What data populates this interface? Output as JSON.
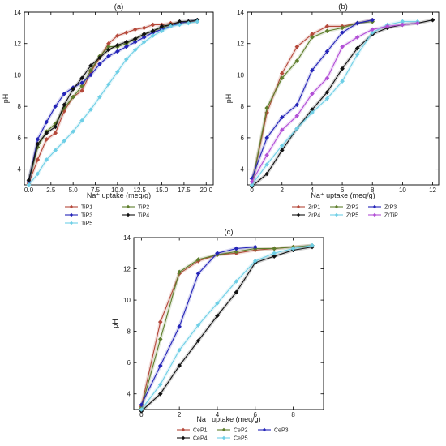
{
  "chart_data": [
    {
      "type": "line",
      "title": "(a)",
      "xlabel": "Na⁺ uptake (meq/g)",
      "ylabel": "pH",
      "xlim": [
        -0.5,
        20.8
      ],
      "ylim": [
        3,
        14
      ],
      "xticks": [
        0.0,
        2.5,
        5.0,
        7.5,
        10.0,
        12.5,
        15.0,
        17.5,
        20.0
      ],
      "xtick_labels": [
        "0.0",
        "2.5",
        "5.0",
        "7.5",
        "10.0",
        "12.5",
        "15.0",
        "17.5",
        "20.0"
      ],
      "yticks": [
        4,
        6,
        8,
        10,
        12,
        14
      ],
      "ytick_labels": [
        "4",
        "6",
        "8",
        "10",
        "12",
        "14"
      ],
      "grid": false,
      "legend_position": "bottom",
      "legend_columns": 2,
      "series": [
        {
          "name": "TiP1",
          "color": "#b5483a",
          "x": [
            0,
            1,
            2,
            3,
            4,
            5,
            6,
            7,
            8,
            9,
            10,
            11,
            12,
            13,
            14,
            15,
            16,
            17,
            18,
            19
          ],
          "y": [
            3.1,
            4.6,
            5.9,
            6.3,
            7.7,
            8.6,
            9.0,
            10.2,
            11.1,
            12.0,
            12.5,
            12.7,
            12.9,
            13.0,
            13.2,
            13.2,
            13.3,
            13.3,
            13.4,
            13.4
          ]
        },
        {
          "name": "TiP2",
          "color": "#5e7e2c",
          "x": [
            0,
            1,
            2,
            3,
            4,
            5,
            6,
            7,
            8,
            9,
            10,
            11,
            12,
            13,
            14,
            15,
            16,
            17,
            18,
            19
          ],
          "y": [
            3.2,
            5.4,
            6.4,
            6.9,
            7.9,
            8.6,
            9.3,
            10.3,
            11.2,
            11.8,
            11.8,
            12.0,
            12.3,
            12.6,
            12.8,
            13.0,
            13.2,
            13.3,
            13.4,
            13.5
          ]
        },
        {
          "name": "TiP3",
          "color": "#2424b8",
          "x": [
            0,
            1,
            2,
            3,
            4,
            5,
            6,
            7,
            8,
            9,
            10,
            11,
            12,
            13,
            14,
            15,
            16,
            17,
            18,
            19
          ],
          "y": [
            3.2,
            5.9,
            7.0,
            8.0,
            8.8,
            9.2,
            9.5,
            10.0,
            10.7,
            11.2,
            11.5,
            11.8,
            12.1,
            12.4,
            12.7,
            12.9,
            13.1,
            13.3,
            13.4,
            13.5
          ]
        },
        {
          "name": "TiP4",
          "color": "#111111",
          "x": [
            0,
            1,
            2,
            3,
            4,
            5,
            6,
            7,
            8,
            9,
            10,
            11,
            12,
            13,
            14,
            15,
            16,
            17,
            18,
            19
          ],
          "y": [
            3.3,
            5.6,
            6.3,
            6.7,
            8.1,
            9.1,
            9.8,
            10.6,
            11.1,
            11.6,
            11.9,
            12.1,
            12.3,
            12.6,
            12.8,
            13.1,
            13.2,
            13.4,
            13.4,
            13.5
          ]
        },
        {
          "name": "TiP5",
          "color": "#6ecfe6",
          "x": [
            0,
            1,
            2,
            3,
            4,
            5,
            6,
            7,
            8,
            9,
            10,
            11,
            12,
            13,
            14,
            15,
            16,
            17,
            18,
            19
          ],
          "y": [
            3.0,
            3.7,
            4.6,
            5.2,
            5.8,
            6.4,
            7.1,
            7.8,
            8.6,
            9.4,
            10.2,
            11.0,
            11.6,
            12.1,
            12.5,
            12.8,
            13.1,
            13.2,
            13.3,
            13.4
          ]
        }
      ]
    },
    {
      "type": "line",
      "title": "(b)",
      "xlabel": "Na⁺ uptake (meq/g)",
      "ylabel": "pH",
      "xlim": [
        -0.3,
        12.4
      ],
      "ylim": [
        3,
        14
      ],
      "xticks": [
        0,
        2,
        4,
        6,
        8,
        10,
        12
      ],
      "xtick_labels": [
        "0",
        "2",
        "4",
        "6",
        "8",
        "10",
        "12"
      ],
      "yticks": [
        4,
        6,
        8,
        10,
        12,
        14
      ],
      "ytick_labels": [
        "4",
        "6",
        "8",
        "10",
        "12",
        "14"
      ],
      "grid": false,
      "legend_position": "bottom",
      "legend_columns": 3,
      "series": [
        {
          "name": "ZrP1",
          "color": "#b5483a",
          "x": [
            0,
            1,
            2,
            3,
            4,
            5,
            6,
            7,
            8
          ],
          "y": [
            3.0,
            7.6,
            10.1,
            11.8,
            12.6,
            13.1,
            13.1,
            13.3,
            13.5
          ]
        },
        {
          "name": "ZrP2",
          "color": "#5e7e2c",
          "x": [
            0,
            1,
            2,
            3,
            4,
            5,
            6,
            7,
            8
          ],
          "y": [
            3.0,
            7.9,
            9.8,
            10.9,
            12.4,
            12.8,
            13.0,
            13.3,
            13.4
          ]
        },
        {
          "name": "ZrP3",
          "color": "#2424b8",
          "x": [
            0,
            1,
            2,
            3,
            4,
            5,
            6,
            7,
            8
          ],
          "y": [
            3.4,
            6.0,
            7.3,
            8.1,
            10.3,
            11.5,
            12.7,
            13.3,
            13.5
          ]
        },
        {
          "name": "ZrP4",
          "color": "#111111",
          "x": [
            0,
            1,
            2,
            3,
            4,
            5,
            6,
            7,
            8,
            9,
            10,
            11,
            12
          ],
          "y": [
            2.9,
            3.7,
            5.2,
            6.6,
            7.8,
            8.9,
            10.4,
            11.7,
            12.6,
            13.0,
            13.2,
            13.3,
            13.5
          ]
        },
        {
          "name": "ZrP5",
          "color": "#6ecfe6",
          "x": [
            0,
            1,
            2,
            3,
            4,
            5,
            6,
            7,
            8,
            9,
            10,
            11
          ],
          "y": [
            3.0,
            4.3,
            5.5,
            6.6,
            7.6,
            8.5,
            9.6,
            11.3,
            12.7,
            13.2,
            13.4,
            13.4
          ]
        },
        {
          "name": "ZrTiP",
          "color": "#b24fd6",
          "x": [
            0,
            1,
            2,
            3,
            4,
            5,
            6,
            7,
            8,
            9,
            10,
            11
          ],
          "y": [
            3.2,
            4.9,
            6.5,
            7.4,
            8.8,
            9.8,
            11.8,
            12.4,
            12.9,
            13.1,
            13.2,
            13.3
          ]
        }
      ]
    },
    {
      "type": "line",
      "title": "(c)",
      "xlabel": "Na⁺ uptake (meq/g)",
      "ylabel": "pH",
      "xlim": [
        -0.4,
        9.6
      ],
      "ylim": [
        3,
        14
      ],
      "xticks": [
        0,
        2,
        4,
        6,
        8
      ],
      "xtick_labels": [
        "0",
        "2",
        "4",
        "6",
        "8"
      ],
      "yticks": [
        4,
        6,
        8,
        10,
        12,
        14
      ],
      "ytick_labels": [
        "4",
        "6",
        "8",
        "10",
        "12",
        "14"
      ],
      "grid": false,
      "legend_position": "bottom",
      "legend_columns": 3,
      "series": [
        {
          "name": "CeP1",
          "color": "#b5483a",
          "x": [
            0,
            1,
            2,
            3,
            4,
            5,
            6,
            7,
            8,
            9
          ],
          "y": [
            3.2,
            8.6,
            11.7,
            12.5,
            12.9,
            13.0,
            13.2,
            13.3,
            13.4,
            13.5
          ]
        },
        {
          "name": "CeP2",
          "color": "#5e7e2c",
          "x": [
            0,
            1,
            2,
            3,
            4,
            5,
            6,
            7,
            8,
            9
          ],
          "y": [
            3.1,
            7.5,
            11.8,
            12.6,
            12.9,
            13.1,
            13.3,
            13.3,
            13.4,
            13.5
          ]
        },
        {
          "name": "CeP3",
          "color": "#2424b8",
          "x": [
            0,
            1,
            2,
            3,
            4,
            5,
            6
          ],
          "y": [
            3.3,
            5.8,
            8.3,
            11.7,
            13.0,
            13.3,
            13.4
          ]
        },
        {
          "name": "CeP4",
          "color": "#111111",
          "x": [
            0,
            1,
            2,
            3,
            4,
            5,
            6,
            7,
            8,
            9
          ],
          "y": [
            2.9,
            4.0,
            5.8,
            7.4,
            9.0,
            10.5,
            12.4,
            12.8,
            13.2,
            13.4
          ]
        },
        {
          "name": "CeP5",
          "color": "#6ecfe6",
          "x": [
            0,
            1,
            2,
            3,
            4,
            5,
            6,
            7,
            8,
            9
          ],
          "y": [
            3.0,
            4.6,
            6.8,
            8.4,
            9.8,
            11.2,
            12.5,
            13.0,
            13.3,
            13.5
          ]
        }
      ]
    }
  ]
}
